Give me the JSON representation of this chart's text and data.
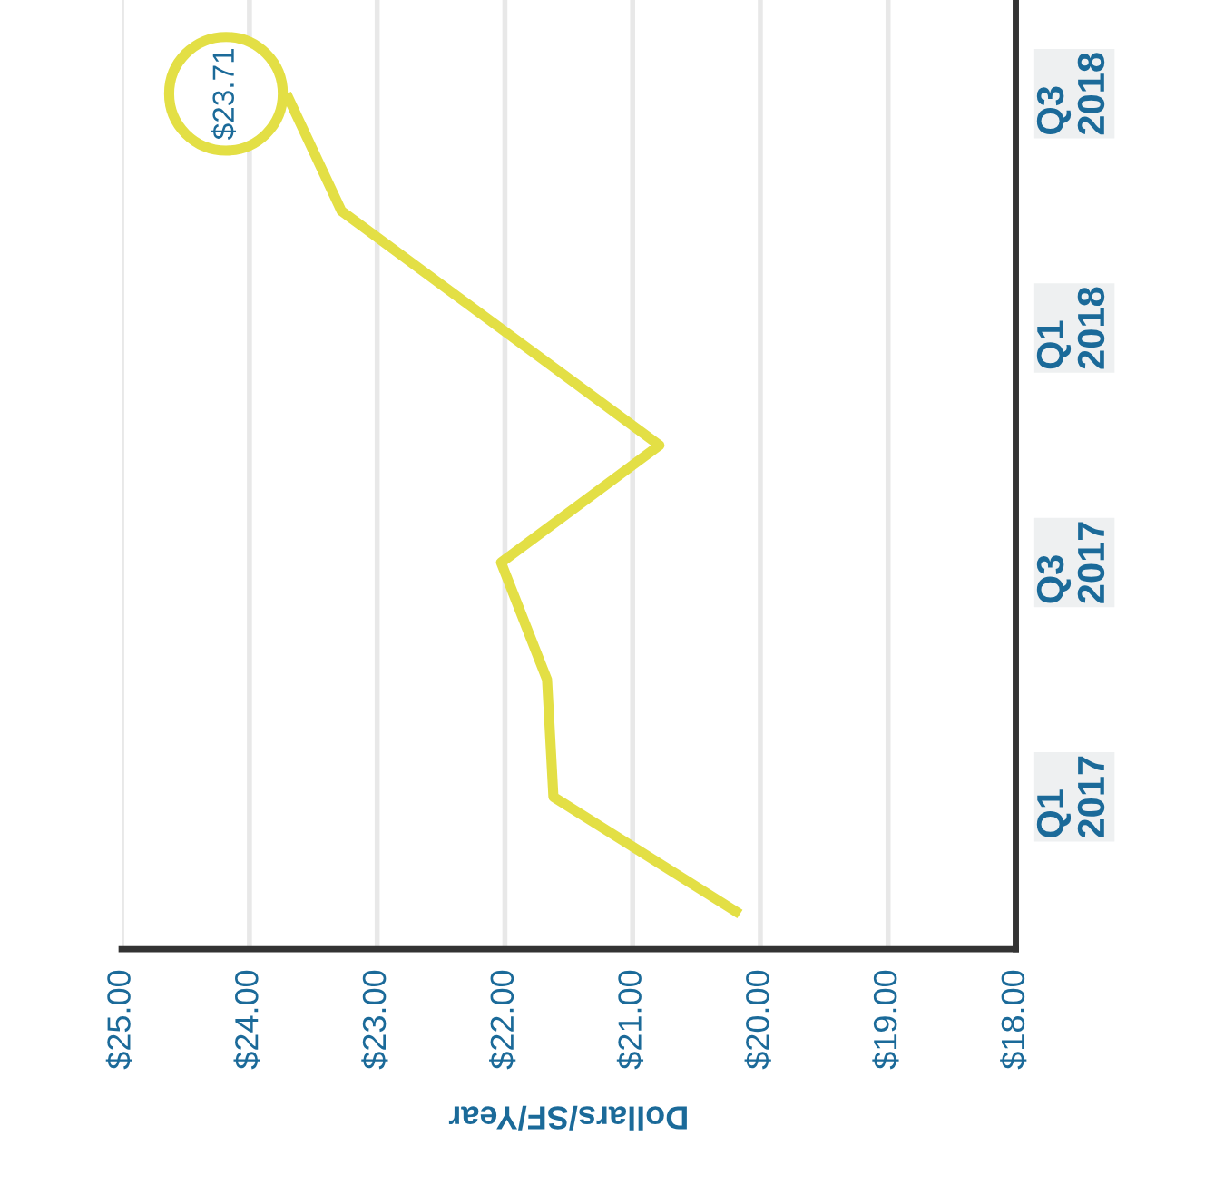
{
  "chart_data": {
    "type": "line",
    "orientation": "horizontal",
    "xlabel": "Dollars/SF/Year",
    "xlim": [
      25,
      18
    ],
    "xticks": [
      {
        "value": 25,
        "label": "$25.00"
      },
      {
        "value": 24,
        "label": "$24.00"
      },
      {
        "value": 23,
        "label": "$23.00"
      },
      {
        "value": 22,
        "label": "$22.00"
      },
      {
        "value": 21,
        "label": "$21.00"
      },
      {
        "value": 20,
        "label": "$20.00"
      },
      {
        "value": 19,
        "label": "$19.00"
      },
      {
        "value": 18,
        "label": "$18.00"
      }
    ],
    "categories": [
      "Q3\n2018",
      null,
      "Q1\n2018",
      null,
      "Q3\n2017",
      null,
      "Q1\n2017",
      null
    ],
    "series": [
      {
        "color": "#e3df45",
        "values": [
          23.71,
          23.28,
          null,
          20.79,
          22.03,
          21.67,
          21.62,
          20.16
        ]
      }
    ],
    "annotations": [
      "$23.71"
    ],
    "grid": "x",
    "marker": "none",
    "line_style": "solid"
  }
}
